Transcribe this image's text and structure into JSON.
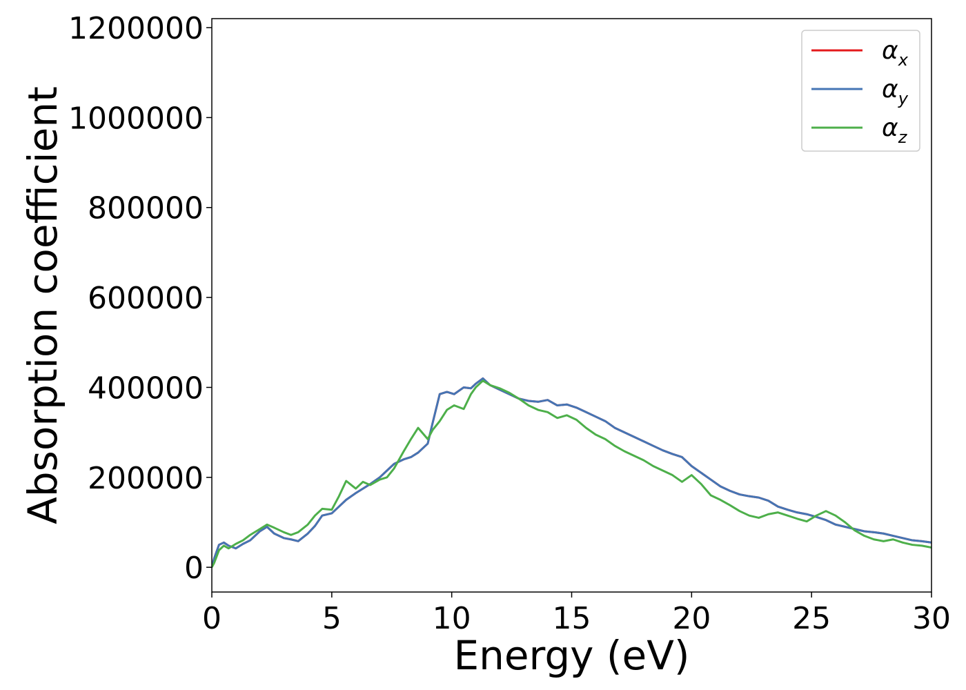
{
  "chart_data": {
    "type": "line",
    "title": "",
    "xlabel": "Energy (eV)",
    "ylabel": "Absorption coefficient",
    "xlim": [
      0,
      30
    ],
    "ylim": [
      -55000,
      1220000
    ],
    "grid": false,
    "legend_position": "top-right",
    "x_ticks": [
      0,
      5,
      10,
      15,
      20,
      25,
      30
    ],
    "x_tick_labels": [
      "0",
      "5",
      "10",
      "15",
      "20",
      "25",
      "30"
    ],
    "y_ticks": [
      0,
      200000,
      400000,
      600000,
      800000,
      1000000,
      1200000
    ],
    "y_tick_labels": [
      "0",
      "200000",
      "400000",
      "600000",
      "800000",
      "1000000",
      "1200000"
    ],
    "series": [
      {
        "name": "α",
        "subscript": "x",
        "color": "#e41a1c",
        "x": [
          0,
          0.1,
          0.3,
          0.5,
          0.7,
          1.0,
          1.3,
          1.6,
          2.0,
          2.3,
          2.6,
          3.0,
          3.3,
          3.6,
          4.0,
          4.3,
          4.6,
          5.0,
          5.3,
          5.6,
          6.0,
          6.3,
          6.6,
          7.0,
          7.3,
          7.6,
          8.0,
          8.3,
          8.6,
          9.0,
          9.2,
          9.5,
          9.8,
          10.1,
          10.5,
          10.8,
          11.0,
          11.3,
          11.6,
          12.0,
          12.4,
          12.8,
          13.2,
          13.6,
          14.0,
          14.4,
          14.8,
          15.2,
          15.6,
          16.0,
          16.4,
          16.8,
          17.2,
          17.6,
          18.0,
          18.4,
          18.8,
          19.2,
          19.6,
          20.0,
          20.4,
          20.8,
          21.2,
          21.6,
          22.0,
          22.4,
          22.8,
          23.2,
          23.6,
          24.0,
          24.4,
          24.8,
          25.2,
          25.6,
          26.0,
          26.4,
          26.8,
          27.2,
          27.6,
          28.0,
          28.4,
          28.8,
          29.2,
          29.6,
          30.0
        ],
        "values": [
          0,
          20000,
          50000,
          55000,
          48000,
          42000,
          52000,
          60000,
          80000,
          90000,
          75000,
          65000,
          62000,
          58000,
          75000,
          92000,
          115000,
          120000,
          135000,
          150000,
          165000,
          175000,
          185000,
          200000,
          215000,
          230000,
          240000,
          245000,
          255000,
          275000,
          320000,
          385000,
          390000,
          385000,
          400000,
          398000,
          408000,
          420000,
          405000,
          395000,
          385000,
          375000,
          370000,
          368000,
          372000,
          360000,
          362000,
          355000,
          345000,
          335000,
          325000,
          310000,
          300000,
          290000,
          280000,
          270000,
          260000,
          252000,
          245000,
          225000,
          210000,
          195000,
          180000,
          170000,
          162000,
          158000,
          155000,
          148000,
          135000,
          128000,
          122000,
          118000,
          112000,
          105000,
          95000,
          90000,
          85000,
          80000,
          78000,
          75000,
          70000,
          65000,
          60000,
          58000,
          55000
        ]
      },
      {
        "name": "α",
        "subscript": "y",
        "color": "#4575b4",
        "x": [
          0,
          0.1,
          0.3,
          0.5,
          0.7,
          1.0,
          1.3,
          1.6,
          2.0,
          2.3,
          2.6,
          3.0,
          3.3,
          3.6,
          4.0,
          4.3,
          4.6,
          5.0,
          5.3,
          5.6,
          6.0,
          6.3,
          6.6,
          7.0,
          7.3,
          7.6,
          8.0,
          8.3,
          8.6,
          9.0,
          9.2,
          9.5,
          9.8,
          10.1,
          10.5,
          10.8,
          11.0,
          11.3,
          11.6,
          12.0,
          12.4,
          12.8,
          13.2,
          13.6,
          14.0,
          14.4,
          14.8,
          15.2,
          15.6,
          16.0,
          16.4,
          16.8,
          17.2,
          17.6,
          18.0,
          18.4,
          18.8,
          19.2,
          19.6,
          20.0,
          20.4,
          20.8,
          21.2,
          21.6,
          22.0,
          22.4,
          22.8,
          23.2,
          23.6,
          24.0,
          24.4,
          24.8,
          25.2,
          25.6,
          26.0,
          26.4,
          26.8,
          27.2,
          27.6,
          28.0,
          28.4,
          28.8,
          29.2,
          29.6,
          30.0
        ],
        "values": [
          0,
          20000,
          50000,
          55000,
          48000,
          42000,
          52000,
          60000,
          80000,
          90000,
          75000,
          65000,
          62000,
          58000,
          75000,
          92000,
          115000,
          120000,
          135000,
          150000,
          165000,
          175000,
          185000,
          200000,
          215000,
          230000,
          240000,
          245000,
          255000,
          275000,
          320000,
          385000,
          390000,
          385000,
          400000,
          398000,
          408000,
          420000,
          405000,
          395000,
          385000,
          375000,
          370000,
          368000,
          372000,
          360000,
          362000,
          355000,
          345000,
          335000,
          325000,
          310000,
          300000,
          290000,
          280000,
          270000,
          260000,
          252000,
          245000,
          225000,
          210000,
          195000,
          180000,
          170000,
          162000,
          158000,
          155000,
          148000,
          135000,
          128000,
          122000,
          118000,
          112000,
          105000,
          95000,
          90000,
          85000,
          80000,
          78000,
          75000,
          70000,
          65000,
          60000,
          58000,
          55000
        ]
      },
      {
        "name": "α",
        "subscript": "z",
        "color": "#4daf4a",
        "x": [
          0,
          0.1,
          0.3,
          0.5,
          0.7,
          1.0,
          1.3,
          1.6,
          2.0,
          2.3,
          2.6,
          3.0,
          3.3,
          3.6,
          4.0,
          4.3,
          4.6,
          5.0,
          5.3,
          5.6,
          6.0,
          6.3,
          6.6,
          7.0,
          7.3,
          7.6,
          8.0,
          8.3,
          8.6,
          9.0,
          9.2,
          9.5,
          9.8,
          10.1,
          10.5,
          10.8,
          11.0,
          11.3,
          11.6,
          12.0,
          12.4,
          12.8,
          13.2,
          13.6,
          14.0,
          14.4,
          14.8,
          15.2,
          15.6,
          16.0,
          16.4,
          16.8,
          17.2,
          17.6,
          18.0,
          18.4,
          18.8,
          19.2,
          19.6,
          20.0,
          20.4,
          20.8,
          21.2,
          21.6,
          22.0,
          22.4,
          22.8,
          23.2,
          23.6,
          24.0,
          24.4,
          24.8,
          25.2,
          25.6,
          26.0,
          26.4,
          26.8,
          27.2,
          27.6,
          28.0,
          28.4,
          28.8,
          29.2,
          29.6,
          30.0
        ],
        "values": [
          0,
          10000,
          38000,
          48000,
          42000,
          52000,
          60000,
          72000,
          85000,
          95000,
          88000,
          78000,
          72000,
          78000,
          95000,
          115000,
          130000,
          128000,
          158000,
          192000,
          175000,
          190000,
          183000,
          195000,
          200000,
          220000,
          258000,
          285000,
          310000,
          285000,
          305000,
          325000,
          350000,
          360000,
          352000,
          385000,
          400000,
          415000,
          405000,
          398000,
          388000,
          375000,
          360000,
          350000,
          345000,
          332000,
          338000,
          328000,
          310000,
          295000,
          285000,
          270000,
          258000,
          248000,
          238000,
          225000,
          215000,
          205000,
          190000,
          205000,
          185000,
          160000,
          150000,
          138000,
          125000,
          115000,
          110000,
          118000,
          122000,
          115000,
          108000,
          102000,
          115000,
          125000,
          115000,
          100000,
          82000,
          70000,
          62000,
          58000,
          62000,
          55000,
          50000,
          48000,
          44000
        ]
      }
    ]
  }
}
